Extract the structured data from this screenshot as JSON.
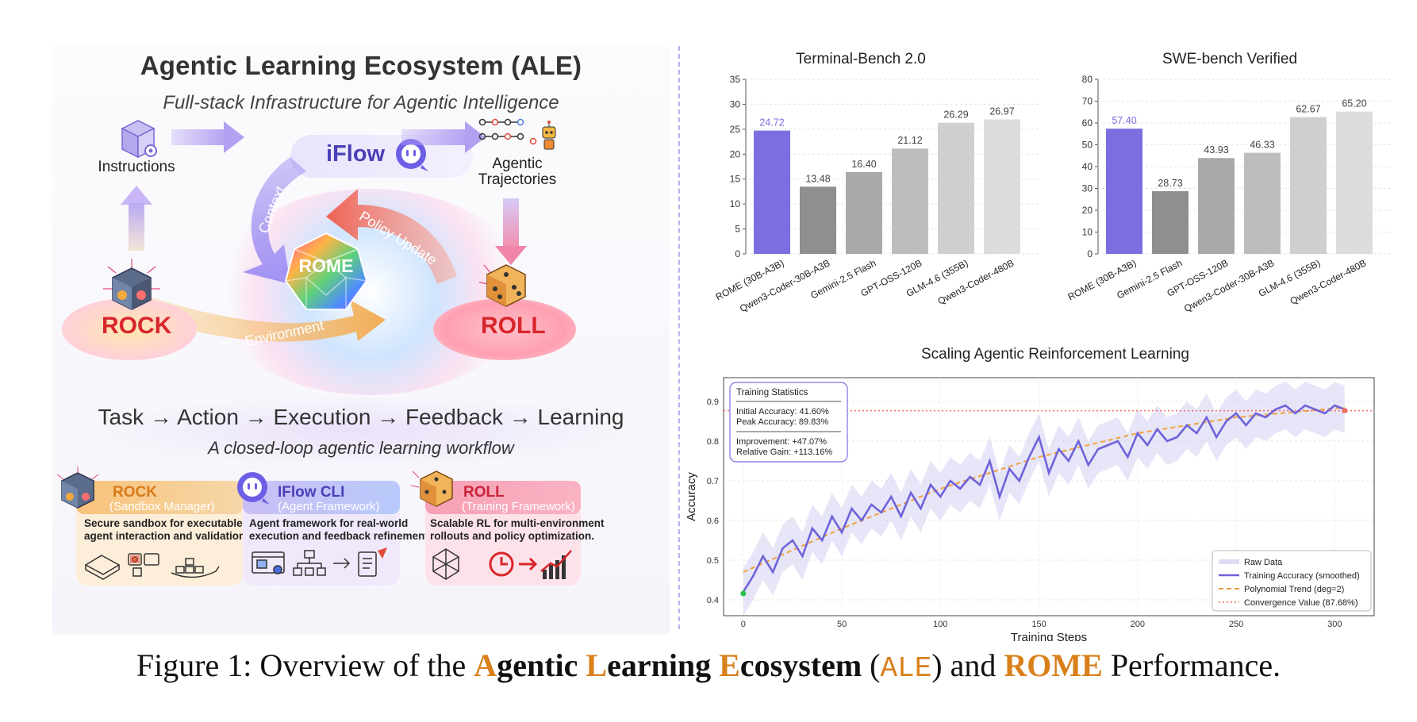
{
  "left": {
    "title": "Agentic Learning Ecosystem (ALE)",
    "subtitle": "Full-stack Infrastructure for Agentic Intelligence",
    "instructions_label": "Instructions",
    "iflow_label": "iFlow",
    "trajectories_label_1": "Agentic",
    "trajectories_label_2": "Trajectories",
    "context_label": "Context",
    "policy_label": "Policy Update",
    "environment_label": "Environment",
    "rome_label": "ROME",
    "rock_label": "ROCK",
    "roll_label": "ROLL",
    "loop_text": "Task → Action → Execution → Feedback → Learning",
    "loop_sub": "A closed-loop agentic learning workflow",
    "cards": [
      {
        "title": "ROCK",
        "sub": "(Sandbox Manager)",
        "body1": "Secure sandbox for executable",
        "body2": "agent interaction and validation."
      },
      {
        "title": "IFlow CLI",
        "sub": "(Agent Framework)",
        "body1": "Agent framework for real-world",
        "body2": "execution and feedback refinement."
      },
      {
        "title": "ROLL",
        "sub": "(Training Framework)",
        "body1": "Scalable RL for multi-environment",
        "body2": "rollouts and policy optimization."
      }
    ],
    "colors": {
      "iflow": "#4b3fb8",
      "rock": "#d8262b",
      "roll": "#d8262b",
      "accent": "#7b6ee0"
    }
  },
  "chart_data": [
    {
      "type": "bar",
      "title": "Terminal-Bench 2.0",
      "categories": [
        "ROME (30B-A3B)",
        "Qwen3-Coder-30B-A3B",
        "Gemini-2.5 Flash",
        "GPT-OSS-120B",
        "GLM-4.6 (355B)",
        "Qwen3-Coder-480B"
      ],
      "values": [
        24.72,
        13.48,
        16.4,
        21.12,
        26.29,
        26.97
      ],
      "value_labels": [
        "24.72",
        "13.48",
        "16.40",
        "21.12",
        "26.29",
        "26.97"
      ],
      "ylim": [
        0,
        35
      ],
      "yticks": [
        "0",
        "5",
        "10",
        "15",
        "20",
        "25",
        "30",
        "35"
      ],
      "highlight_color": "#7b6ee0",
      "colors": [
        "#7b6ee0",
        "#8f8f8f",
        "#a9a9a9",
        "#bdbdbd",
        "#cfcfcf",
        "#dcdcdc"
      ]
    },
    {
      "type": "bar",
      "title": "SWE-bench Verified",
      "categories": [
        "ROME (30B-A3B)",
        "Gemini-2.5 Flash",
        "GPT-OSS-120B",
        "Qwen3-Coder-30B-A3B",
        "GLM-4.6 (355B)",
        "Qwen3-Coder-480B"
      ],
      "values": [
        57.4,
        28.73,
        43.93,
        46.33,
        62.67,
        65.2
      ],
      "value_labels": [
        "57.40",
        "28.73",
        "43.93",
        "46.33",
        "62.67",
        "65.20"
      ],
      "ylim": [
        0,
        80
      ],
      "yticks": [
        "0",
        "10",
        "20",
        "30",
        "40",
        "50",
        "60",
        "70",
        "80"
      ],
      "highlight_color": "#7b6ee0",
      "colors": [
        "#7b6ee0",
        "#8f8f8f",
        "#a9a9a9",
        "#bdbdbd",
        "#cfcfcf",
        "#dcdcdc"
      ]
    },
    {
      "type": "line",
      "title": "Scaling Agentic Reinforcement Learning",
      "xlabel": "Training Steps",
      "ylabel": "Accuracy",
      "xlim": [
        -10,
        320
      ],
      "ylim": [
        0.36,
        0.96
      ],
      "xticks": [
        "0",
        "50",
        "100",
        "150",
        "200",
        "250",
        "300"
      ],
      "yticks": [
        "0.4",
        "0.5",
        "0.6",
        "0.7",
        "0.8",
        "0.9"
      ],
      "series": [
        {
          "name": "Raw Data",
          "color": "#c9c5ef"
        },
        {
          "name": "Training Accuracy (smoothed)",
          "color": "#6f63d9",
          "x": [
            0,
            5,
            10,
            15,
            20,
            25,
            30,
            35,
            40,
            45,
            50,
            55,
            60,
            65,
            70,
            75,
            80,
            85,
            90,
            95,
            100,
            105,
            110,
            115,
            120,
            125,
            130,
            135,
            140,
            145,
            150,
            155,
            160,
            165,
            170,
            175,
            180,
            185,
            190,
            195,
            200,
            205,
            210,
            215,
            220,
            225,
            230,
            235,
            240,
            245,
            250,
            255,
            260,
            265,
            270,
            275,
            280,
            285,
            290,
            295,
            300,
            305
          ],
          "y": [
            0.42,
            0.46,
            0.51,
            0.47,
            0.53,
            0.55,
            0.51,
            0.58,
            0.55,
            0.61,
            0.57,
            0.63,
            0.6,
            0.64,
            0.62,
            0.66,
            0.61,
            0.67,
            0.63,
            0.69,
            0.66,
            0.7,
            0.68,
            0.71,
            0.69,
            0.75,
            0.66,
            0.73,
            0.7,
            0.76,
            0.81,
            0.72,
            0.78,
            0.75,
            0.8,
            0.74,
            0.78,
            0.79,
            0.8,
            0.76,
            0.82,
            0.79,
            0.83,
            0.8,
            0.81,
            0.84,
            0.82,
            0.86,
            0.81,
            0.85,
            0.87,
            0.84,
            0.87,
            0.86,
            0.88,
            0.89,
            0.87,
            0.89,
            0.88,
            0.87,
            0.89,
            0.88
          ]
        },
        {
          "name": "Polynomial Trend (deg=2)",
          "color": "#f0a33a",
          "x": [
            0,
            50,
            100,
            150,
            200,
            250,
            305
          ],
          "y": [
            0.47,
            0.58,
            0.68,
            0.76,
            0.82,
            0.86,
            0.885
          ]
        },
        {
          "name": "Convergence Value (87.68%)",
          "color": "#ef6b5a",
          "y_value": 0.8768
        }
      ],
      "stats_box": {
        "heading": "Training Statistics",
        "line1": "Initial Accuracy: 41.60%",
        "line2": "Peak Accuracy:   89.83%",
        "line3": "Improvement: +47.07%",
        "line4": "Relative Gain: +113.16%"
      },
      "legend_position": "lower-right",
      "grid": true
    }
  ],
  "caption": {
    "prefix": "Figure 1: Overview of the ",
    "a1": "A",
    "w1": "gentic ",
    "l1": "L",
    "w2": "earning ",
    "e1": "E",
    "w3": "cosystem",
    "paren_open": " (",
    "mono": "ALE",
    "paren_close": ") and ",
    "rome": "ROME",
    "suffix": " Performance."
  }
}
